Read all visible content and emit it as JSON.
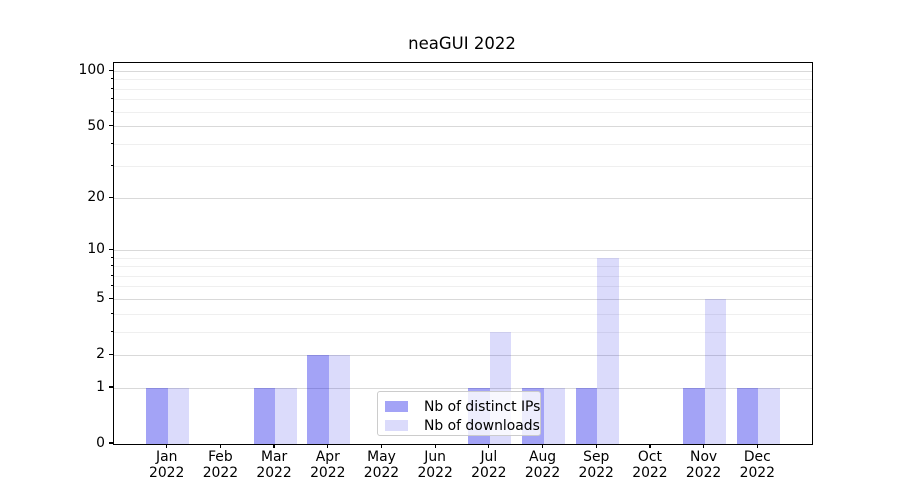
{
  "chart_data": {
    "type": "bar",
    "title": "neaGUI 2022",
    "categories": [
      "Jan\n2022",
      "Feb\n2022",
      "Mar\n2022",
      "Apr\n2022",
      "May\n2022",
      "Jun\n2022",
      "Jul\n2022",
      "Aug\n2022",
      "Sep\n2022",
      "Oct\n2022",
      "Nov\n2022",
      "Dec\n2022"
    ],
    "series": [
      {
        "name": "Nb of distinct IPs",
        "color": "#0000e6",
        "alpha": 0.36,
        "values": [
          1,
          0,
          1,
          2,
          0,
          0,
          1,
          1,
          1,
          0,
          1,
          1
        ]
      },
      {
        "name": "Nb of downloads",
        "color": "#0000e6",
        "alpha": 0.14,
        "values": [
          1,
          0,
          1,
          2,
          0,
          0,
          3,
          1,
          9,
          0,
          5,
          1
        ]
      }
    ],
    "xlabel": "",
    "ylabel": "",
    "yscale": "log1p",
    "ylim": [
      0,
      111
    ],
    "yticks_major": [
      0,
      1,
      2,
      5,
      10,
      20,
      50,
      100
    ],
    "yticks_minor": [
      3,
      4,
      6,
      7,
      8,
      9,
      30,
      40,
      60,
      70,
      80,
      90
    ],
    "grid": {
      "major_color": "#d9d9d9",
      "minor_color": "#efefef"
    },
    "legend": {
      "position": "lower center",
      "frame": true
    }
  }
}
